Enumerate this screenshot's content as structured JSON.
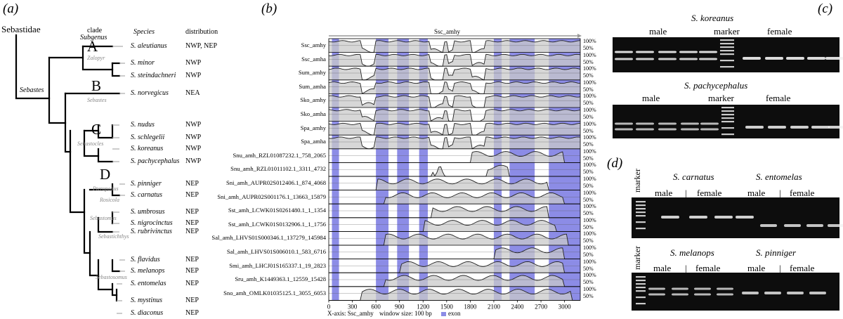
{
  "panels": {
    "a": "(a)",
    "b": "(b)",
    "c": "(c)",
    "d": "(d)"
  },
  "tree": {
    "root": "Sebastidae",
    "genus": "Sebastes",
    "headers": {
      "clade": "clade",
      "subgenus": "Subgenus",
      "species": "Species",
      "distribution": "distribution"
    },
    "clades": [
      "A",
      "B",
      "C",
      "D"
    ],
    "subgenera": [
      "Zalopyr",
      "Sebastes",
      "Sebastocles",
      "Pteropodus",
      "Rosicola",
      "Sebastomus",
      "Sebastichthys",
      "Sebastosomus"
    ],
    "species": [
      {
        "name": "S. aleutianus",
        "dist": "NWP, NEP"
      },
      {
        "name": "S. minor",
        "dist": "NWP"
      },
      {
        "name": "S. steindachneri",
        "dist": "NWP"
      },
      {
        "name": "S. norvegicus",
        "dist": "NEA"
      },
      {
        "name": "S. nudus",
        "dist": "NWP"
      },
      {
        "name": "S. schlegelii",
        "dist": "NWP"
      },
      {
        "name": "S. koreanus",
        "dist": "NWP"
      },
      {
        "name": "S. pachycephalus",
        "dist": "NWP"
      },
      {
        "name": "S. pinniger",
        "dist": "NEP"
      },
      {
        "name": "S. carnatus",
        "dist": "NEP"
      },
      {
        "name": "S. umbrosus",
        "dist": "NEP"
      },
      {
        "name": "S. nigrocinctus",
        "dist": "NEP"
      },
      {
        "name": "S. rubrivinctus",
        "dist": "NEP"
      },
      {
        "name": "S. flavidus",
        "dist": "NEP"
      },
      {
        "name": "S. melanops",
        "dist": "NEP"
      },
      {
        "name": "S. entomelas",
        "dist": "NEP"
      },
      {
        "name": "S. mystinus",
        "dist": "NEP"
      },
      {
        "name": "S. diaconus",
        "dist": "NEP"
      }
    ]
  },
  "vista": {
    "ref": "Ssc_amhy",
    "pct_high": "100%",
    "pct_low": "50%",
    "tracks": [
      "Ssc_amhy",
      "Ssc_amha",
      "Sum_amhy",
      "Sum_amha",
      "Sko_amhy",
      "Sko_amha",
      "Spa_amhy",
      "Spa_amha",
      "Snu_amh_RZL01087232.1_758_2065",
      "Snu_amh_RZL01011102.1_3311_4732",
      "Sni_amh_AUPR02S012406.1_874_4068",
      "Sni_amh_AUPR02S001176.1_13663_15879",
      "Sst_amh_LCWK01S0261480.1_1_1354",
      "Sst_amh_LCWK01S0132906.1_1_1756",
      "Sal_amh_LHVS01S000346.1_137279_145984",
      "Sal_amh_LHVS01S006010.1_583_6716",
      "Smi_amh_LHCJ01S165337.1_19_2823",
      "Sru_amh_K1449363.1_12559_15428",
      "Sno_amh_OMLK01035125.1_3055_6053"
    ],
    "ticks": [
      "0",
      "300",
      "600",
      "900",
      "1200",
      "1500",
      "1800",
      "2100",
      "2400",
      "2700",
      "3000"
    ],
    "xaxis": "X-axis: Ssc_amhy",
    "window": "window size: 100 bp",
    "exon": "exon",
    "exon_color": "#8c8ce6",
    "fill_color": "#c9c9c9"
  },
  "gels": {
    "c_top": {
      "title": "S. koreanus",
      "male": "male",
      "marker": "marker",
      "female": "female"
    },
    "c_bot": {
      "title": "S. pachycephalus",
      "male": "male",
      "marker": "marker",
      "female": "female"
    },
    "d1": {
      "title_left": "S. carnatus",
      "title_right": "S. entomelas",
      "marker": "marker",
      "male1": "male",
      "sep1": "|",
      "female1": "female",
      "male2": "male",
      "sep2": "|",
      "female2": "female"
    },
    "d2": {
      "title_left": "S. melanops",
      "title_right": "S. pinniger",
      "marker": "marker",
      "male1": "male",
      "sep1": "|",
      "female1": "female",
      "male2": "male",
      "sep2": "|",
      "female2": "female"
    }
  }
}
